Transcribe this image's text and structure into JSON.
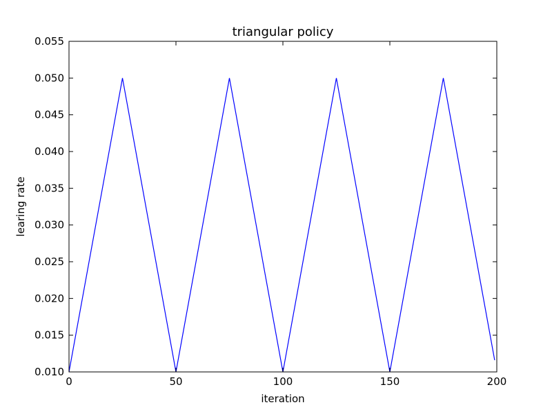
{
  "chart_data": {
    "type": "line",
    "title": "triangular policy",
    "xlabel": "iteration",
    "ylabel": "learing rate",
    "xlim": [
      0,
      200
    ],
    "ylim": [
      0.01,
      0.055
    ],
    "x_ticks": [
      "0",
      "50",
      "100",
      "150",
      "200"
    ],
    "y_ticks": [
      "0.010",
      "0.015",
      "0.020",
      "0.025",
      "0.030",
      "0.035",
      "0.040",
      "0.045",
      "0.050",
      "0.055"
    ],
    "grid": false,
    "legend": "none",
    "series": [
      {
        "color": "#0000ff",
        "x": [
          0,
          25,
          50,
          75,
          100,
          125,
          150,
          175,
          199
        ],
        "y": [
          0.01,
          0.05,
          0.01,
          0.05,
          0.01,
          0.05,
          0.01,
          0.05,
          0.0116
        ]
      }
    ]
  }
}
